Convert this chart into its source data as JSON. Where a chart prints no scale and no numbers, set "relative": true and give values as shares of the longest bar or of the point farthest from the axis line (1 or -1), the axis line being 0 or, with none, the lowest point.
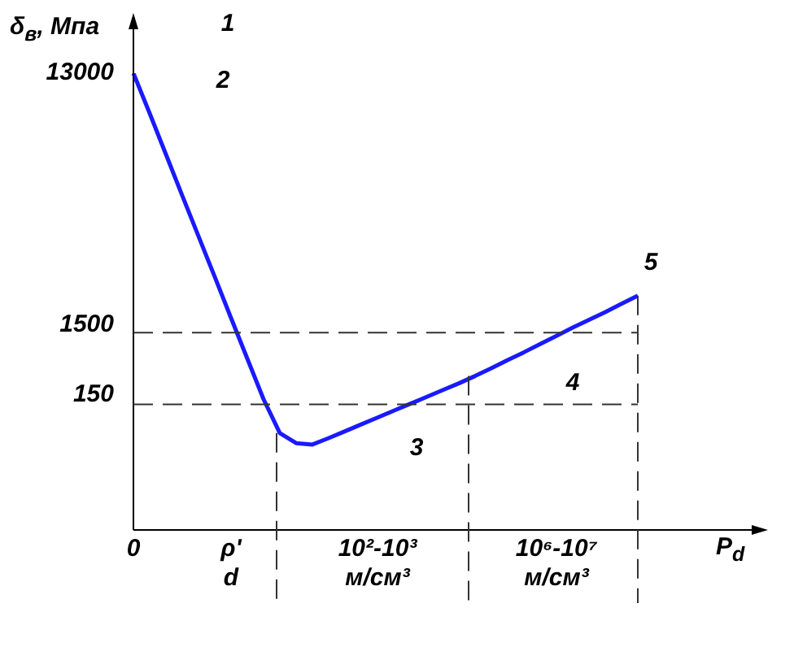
{
  "chart_data": {
    "type": "line",
    "relative": true,
    "ylabel": "δ$_{в}$, Мпа",
    "xlabel": "P$_{d}$",
    "categories": [
      "0",
      null,
      null,
      null,
      null,
      null,
      "ρ'\nd",
      null,
      null,
      null,
      null,
      null,
      null,
      null,
      null,
      "10²-10³\nм/см³",
      null,
      null,
      null,
      null,
      null,
      null,
      null,
      null,
      null,
      null,
      "10⁶-10⁷\nм/см³",
      null,
      null,
      null,
      null,
      null
    ],
    "series": [
      {
        "color": "#1a1aff",
        "values": [
          1,
          0.912,
          0.822,
          0.732,
          0.643,
          0.554,
          0.464,
          0.375,
          0.286,
          0.212,
          0.19,
          0.187,
          0.201,
          0.216,
          0.231,
          0.246,
          0.261,
          0.276,
          0.291,
          0.306,
          0.321,
          0.337,
          0.354,
          0.372,
          0.389,
          0.407,
          0.425,
          0.443,
          0.46,
          0.477,
          0.495,
          0.513
        ]
      }
    ],
    "ref_lines": [
      {
        "axis": "y",
        "value": 0.432,
        "color": "#333333",
        "line_style": "dashed"
      },
      {
        "axis": "y",
        "value": 0.275,
        "color": "#333333",
        "line_style": "dashed"
      }
    ],
    "annotations": [
      "13000",
      "1500",
      "150",
      "1",
      "2",
      "3",
      "4",
      "5"
    ],
    "grid": false,
    "legend": false
  }
}
